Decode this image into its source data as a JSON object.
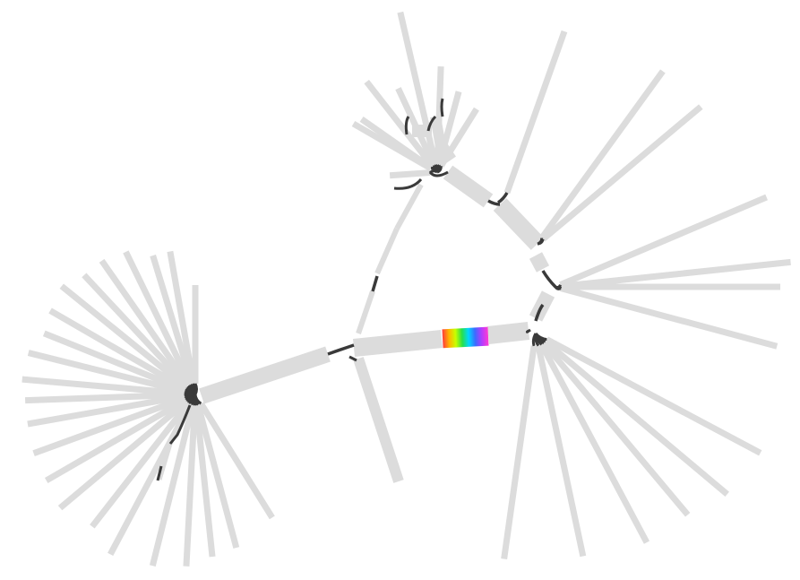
{
  "colors": {
    "background": "#ffffff",
    "segment": "#dcdcdc",
    "link": "#3a3a3a",
    "highlight_gradient": [
      "#ff3b3b",
      "#ffb400",
      "#c8ff00",
      "#27e04a",
      "#00d6ff",
      "#3b6bff",
      "#b33bff",
      "#ff3bd2"
    ]
  },
  "graph": {
    "type": "assembly-graph",
    "hubs": 10,
    "segments": 96,
    "links": 120,
    "highlighted_segments": 1
  }
}
